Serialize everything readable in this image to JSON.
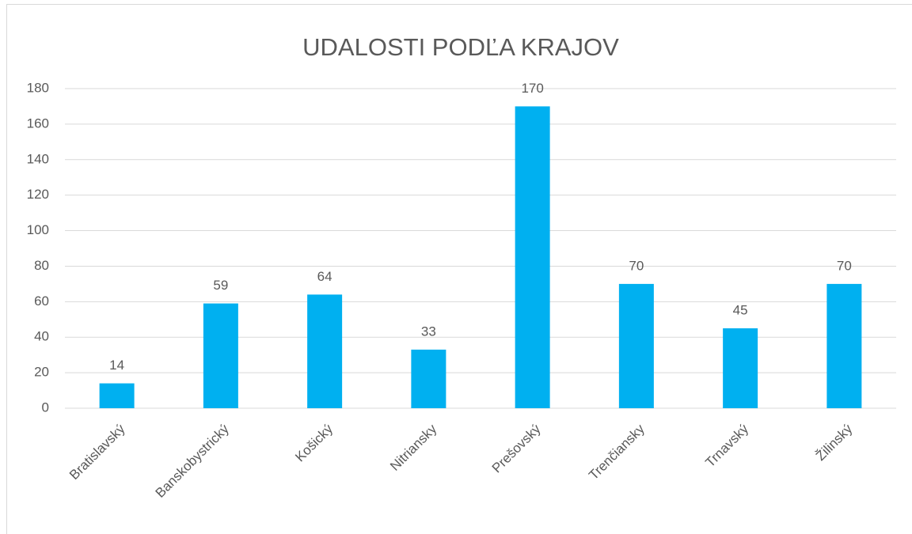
{
  "chart_data": {
    "type": "bar",
    "title": "UDALOSTI PODĽA KRAJOV",
    "categories": [
      "Bratislavský",
      "Banskobystrický",
      "Košický",
      "Nitriansky",
      "Prešovský",
      "Trenčiansky",
      "Trnavský",
      "Žilinský"
    ],
    "values": [
      14,
      59,
      64,
      33,
      170,
      70,
      45,
      70
    ],
    "color": "#00b0f0",
    "ylim": [
      0,
      180
    ],
    "yticks": [
      0,
      20,
      40,
      60,
      80,
      100,
      120,
      140,
      160,
      180
    ],
    "grid": true
  }
}
